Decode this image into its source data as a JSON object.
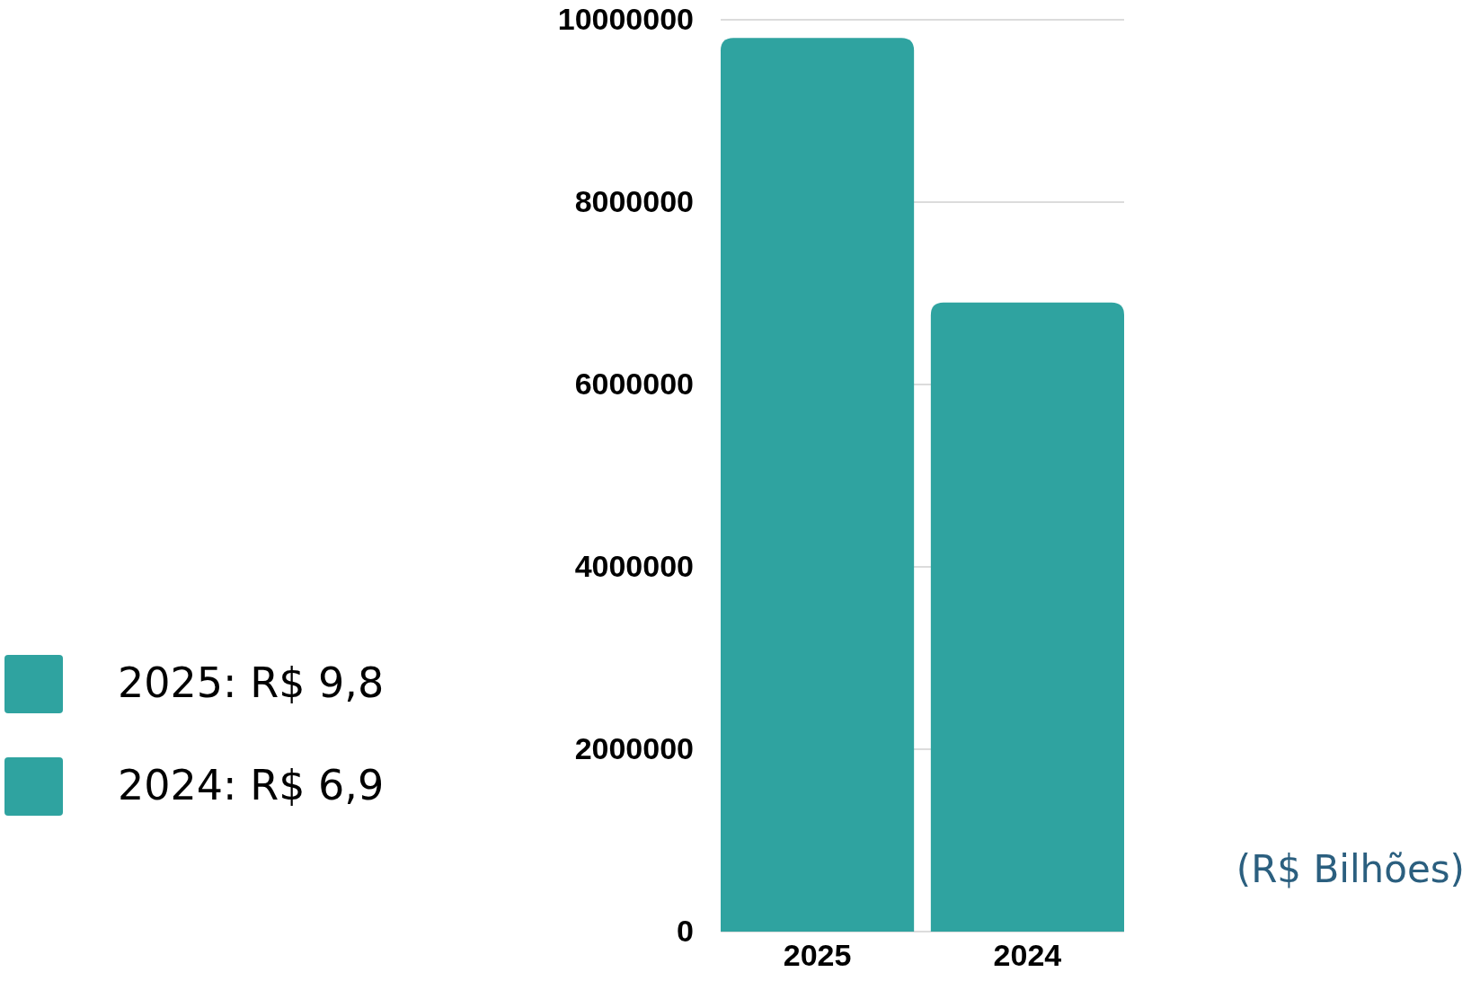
{
  "chart_data": {
    "type": "bar",
    "categories": [
      "2025",
      "2024"
    ],
    "stacked": true,
    "series": [
      {
        "name": "2025: R$ 9,8",
        "color": "#2fa3a0",
        "values": [
          9800000,
          null
        ]
      },
      {
        "name": "2024: R$ 6,9",
        "color": "#2fa3a0",
        "values": [
          null,
          6900000
        ]
      }
    ],
    "ylim": [
      0,
      10000000
    ],
    "yticks": [
      0,
      2000000,
      4000000,
      6000000,
      8000000,
      10000000
    ],
    "grid": "y",
    "legend": "left",
    "annotations": [
      "(R$ Bilhões)"
    ]
  }
}
